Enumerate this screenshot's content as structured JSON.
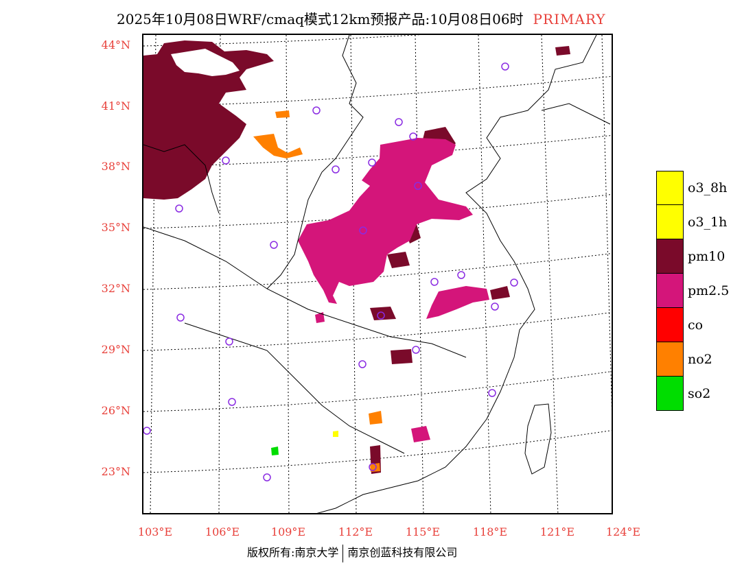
{
  "title": {
    "main": "2025年10月08日WRF/cmaq模式12km预报产品:10月08日06时",
    "tag": "PRIMARY"
  },
  "axes": {
    "latitudes": [
      "44°N",
      "41°N",
      "38°N",
      "35°N",
      "32°N",
      "29°N",
      "26°N",
      "23°N"
    ],
    "longitudes": [
      "103°E",
      "106°E",
      "109°E",
      "112°E",
      "115°E",
      "118°E",
      "121°E",
      "124°E"
    ]
  },
  "legend": [
    {
      "label": "o3_8h",
      "color": "#ffff00"
    },
    {
      "label": "o3_1h",
      "color": "#ffff00"
    },
    {
      "label": "pm10",
      "color": "#7a0a2a"
    },
    {
      "label": "pm2.5",
      "color": "#d4157a"
    },
    {
      "label": "co",
      "color": "#ff0000"
    },
    {
      "label": "no2",
      "color": "#ff8000"
    },
    {
      "label": "so2",
      "color": "#00dd00"
    }
  ],
  "copyright": {
    "left": "版权所有:南京大学",
    "right": "南京创蓝科技有限公司"
  },
  "colors": {
    "accent": "#e8403a",
    "station": "#8a2be2"
  }
}
